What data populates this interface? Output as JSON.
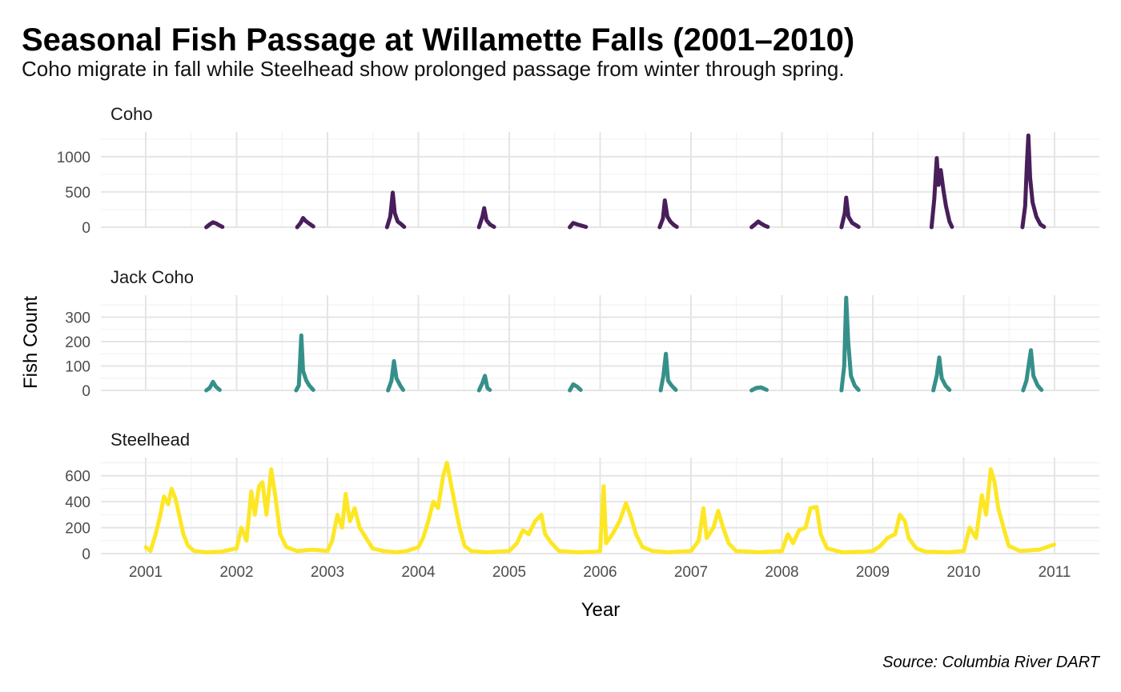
{
  "chart_data": {
    "type": "line",
    "title": "Seasonal Fish Passage at Willamette Falls (2001–2010)",
    "subtitle": "Coho migrate in fall while Steelhead show prolonged passage from winter through spring.",
    "xlabel": "Year",
    "ylabel": "Fish Count",
    "caption": "Source: Columbia River DART",
    "x_ticks": [
      "2001",
      "2002",
      "2003",
      "2004",
      "2005",
      "2006",
      "2007",
      "2008",
      "2009",
      "2010",
      "2011"
    ],
    "grid": true,
    "legend": "none",
    "facets": [
      {
        "label": "Coho",
        "color": "#481F5A",
        "ylim": [
          0,
          1350
        ],
        "y_ticks": [
          0,
          500,
          1000
        ],
        "points": [
          [
            "2001-09-01",
            0
          ],
          [
            "2001-09-15",
            40
          ],
          [
            "2001-09-28",
            70
          ],
          [
            "2001-10-10",
            55
          ],
          [
            "2001-10-22",
            30
          ],
          [
            "2001-11-05",
            5
          ],
          [
            "2002-09-01",
            0
          ],
          [
            "2002-09-15",
            60
          ],
          [
            "2002-09-25",
            130
          ],
          [
            "2002-10-05",
            90
          ],
          [
            "2002-10-20",
            50
          ],
          [
            "2002-11-05",
            10
          ],
          [
            "2003-08-28",
            0
          ],
          [
            "2003-09-10",
            150
          ],
          [
            "2003-09-20",
            490
          ],
          [
            "2003-09-28",
            200
          ],
          [
            "2003-10-10",
            80
          ],
          [
            "2003-10-25",
            40
          ],
          [
            "2003-11-05",
            5
          ],
          [
            "2004-09-01",
            0
          ],
          [
            "2004-09-15",
            150
          ],
          [
            "2004-09-22",
            270
          ],
          [
            "2004-10-01",
            100
          ],
          [
            "2004-10-15",
            40
          ],
          [
            "2004-11-01",
            5
          ],
          [
            "2005-09-01",
            0
          ],
          [
            "2005-09-15",
            60
          ],
          [
            "2005-10-01",
            40
          ],
          [
            "2005-10-20",
            20
          ],
          [
            "2005-11-05",
            5
          ],
          [
            "2006-08-28",
            0
          ],
          [
            "2006-09-10",
            120
          ],
          [
            "2006-09-18",
            380
          ],
          [
            "2006-09-28",
            150
          ],
          [
            "2006-10-10",
            80
          ],
          [
            "2006-10-25",
            30
          ],
          [
            "2006-11-05",
            5
          ],
          [
            "2007-09-01",
            0
          ],
          [
            "2007-09-15",
            40
          ],
          [
            "2007-09-28",
            80
          ],
          [
            "2007-10-10",
            50
          ],
          [
            "2007-10-25",
            20
          ],
          [
            "2007-11-05",
            5
          ],
          [
            "2008-08-28",
            0
          ],
          [
            "2008-09-10",
            200
          ],
          [
            "2008-09-16",
            420
          ],
          [
            "2008-09-25",
            150
          ],
          [
            "2008-10-10",
            60
          ],
          [
            "2008-10-25",
            30
          ],
          [
            "2008-11-05",
            5
          ],
          [
            "2009-08-25",
            0
          ],
          [
            "2009-09-05",
            400
          ],
          [
            "2009-09-15",
            980
          ],
          [
            "2009-09-22",
            600
          ],
          [
            "2009-10-01",
            810
          ],
          [
            "2009-10-12",
            520
          ],
          [
            "2009-10-22",
            300
          ],
          [
            "2009-11-05",
            80
          ],
          [
            "2009-11-15",
            5
          ],
          [
            "2010-08-25",
            0
          ],
          [
            "2010-09-05",
            300
          ],
          [
            "2010-09-12",
            900
          ],
          [
            "2010-09-18",
            1300
          ],
          [
            "2010-09-25",
            700
          ],
          [
            "2010-10-05",
            350
          ],
          [
            "2010-10-20",
            150
          ],
          [
            "2010-11-05",
            40
          ],
          [
            "2010-11-20",
            5
          ]
        ]
      },
      {
        "label": "Jack Coho",
        "color": "#36908A",
        "ylim": [
          0,
          390
        ],
        "y_ticks": [
          0,
          100,
          200,
          300
        ],
        "points": [
          [
            "2001-09-01",
            0
          ],
          [
            "2001-09-15",
            10
          ],
          [
            "2001-09-28",
            35
          ],
          [
            "2001-10-10",
            15
          ],
          [
            "2001-10-25",
            2
          ],
          [
            "2002-08-28",
            0
          ],
          [
            "2002-09-08",
            20
          ],
          [
            "2002-09-18",
            225
          ],
          [
            "2002-09-25",
            80
          ],
          [
            "2002-10-08",
            40
          ],
          [
            "2002-10-20",
            20
          ],
          [
            "2002-11-05",
            2
          ],
          [
            "2003-09-01",
            0
          ],
          [
            "2003-09-15",
            40
          ],
          [
            "2003-09-25",
            120
          ],
          [
            "2003-10-05",
            50
          ],
          [
            "2003-10-20",
            20
          ],
          [
            "2003-11-01",
            2
          ],
          [
            "2004-09-01",
            0
          ],
          [
            "2004-09-15",
            30
          ],
          [
            "2004-09-25",
            60
          ],
          [
            "2004-10-05",
            10
          ],
          [
            "2004-10-15",
            2
          ],
          [
            "2005-09-01",
            0
          ],
          [
            "2005-09-15",
            25
          ],
          [
            "2005-10-01",
            15
          ],
          [
            "2005-10-15",
            2
          ],
          [
            "2006-09-01",
            0
          ],
          [
            "2006-09-12",
            60
          ],
          [
            "2006-09-22",
            150
          ],
          [
            "2006-10-01",
            40
          ],
          [
            "2006-10-15",
            20
          ],
          [
            "2006-11-01",
            2
          ],
          [
            "2007-09-01",
            0
          ],
          [
            "2007-09-20",
            10
          ],
          [
            "2007-10-10",
            12
          ],
          [
            "2007-11-01",
            2
          ],
          [
            "2008-08-28",
            0
          ],
          [
            "2008-09-08",
            100
          ],
          [
            "2008-09-16",
            380
          ],
          [
            "2008-09-24",
            200
          ],
          [
            "2008-10-05",
            60
          ],
          [
            "2008-10-20",
            20
          ],
          [
            "2008-11-05",
            2
          ],
          [
            "2009-09-01",
            0
          ],
          [
            "2009-09-15",
            60
          ],
          [
            "2009-09-25",
            135
          ],
          [
            "2009-10-05",
            50
          ],
          [
            "2009-10-20",
            20
          ],
          [
            "2009-11-05",
            2
          ],
          [
            "2010-08-28",
            0
          ],
          [
            "2010-09-10",
            40
          ],
          [
            "2010-09-20",
            110
          ],
          [
            "2010-09-28",
            165
          ],
          [
            "2010-10-08",
            60
          ],
          [
            "2010-10-25",
            20
          ],
          [
            "2010-11-10",
            2
          ]
        ]
      },
      {
        "label": "Steelhead",
        "color": "#FDE725",
        "ylim": [
          0,
          740
        ],
        "y_ticks": [
          0,
          200,
          400,
          600
        ],
        "points": [
          [
            "2001-01-01",
            50
          ],
          [
            "2001-01-20",
            20
          ],
          [
            "2001-02-10",
            150
          ],
          [
            "2001-03-01",
            300
          ],
          [
            "2001-03-15",
            440
          ],
          [
            "2001-04-01",
            380
          ],
          [
            "2001-04-15",
            500
          ],
          [
            "2001-05-01",
            420
          ],
          [
            "2001-05-15",
            300
          ],
          [
            "2001-06-01",
            150
          ],
          [
            "2001-06-20",
            60
          ],
          [
            "2001-07-15",
            20
          ],
          [
            "2001-09-01",
            10
          ],
          [
            "2001-11-01",
            15
          ],
          [
            "2002-01-01",
            40
          ],
          [
            "2002-01-20",
            200
          ],
          [
            "2002-02-10",
            100
          ],
          [
            "2002-03-01",
            480
          ],
          [
            "2002-03-15",
            300
          ],
          [
            "2002-04-01",
            520
          ],
          [
            "2002-04-15",
            550
          ],
          [
            "2002-05-01",
            300
          ],
          [
            "2002-05-20",
            650
          ],
          [
            "2002-06-05",
            450
          ],
          [
            "2002-06-25",
            150
          ],
          [
            "2002-07-20",
            50
          ],
          [
            "2002-09-01",
            20
          ],
          [
            "2002-11-01",
            30
          ],
          [
            "2003-01-01",
            20
          ],
          [
            "2003-01-20",
            100
          ],
          [
            "2003-02-10",
            300
          ],
          [
            "2003-03-01",
            200
          ],
          [
            "2003-03-15",
            460
          ],
          [
            "2003-04-01",
            250
          ],
          [
            "2003-04-20",
            350
          ],
          [
            "2003-05-10",
            200
          ],
          [
            "2003-06-05",
            120
          ],
          [
            "2003-07-01",
            40
          ],
          [
            "2003-08-15",
            20
          ],
          [
            "2003-10-01",
            10
          ],
          [
            "2003-11-15",
            20
          ],
          [
            "2004-01-01",
            50
          ],
          [
            "2004-01-20",
            120
          ],
          [
            "2004-02-10",
            250
          ],
          [
            "2004-03-01",
            400
          ],
          [
            "2004-03-20",
            350
          ],
          [
            "2004-04-10",
            600
          ],
          [
            "2004-04-25",
            700
          ],
          [
            "2004-05-10",
            550
          ],
          [
            "2004-05-25",
            400
          ],
          [
            "2004-06-15",
            200
          ],
          [
            "2004-07-05",
            60
          ],
          [
            "2004-08-01",
            20
          ],
          [
            "2004-10-01",
            10
          ],
          [
            "2005-01-01",
            20
          ],
          [
            "2005-02-01",
            80
          ],
          [
            "2005-02-25",
            180
          ],
          [
            "2005-03-20",
            150
          ],
          [
            "2005-04-15",
            250
          ],
          [
            "2005-05-10",
            300
          ],
          [
            "2005-05-25",
            150
          ],
          [
            "2005-06-20",
            80
          ],
          [
            "2005-07-20",
            20
          ],
          [
            "2005-10-01",
            10
          ],
          [
            "2005-12-15",
            15
          ],
          [
            "2006-01-01",
            20
          ],
          [
            "2006-01-15",
            520
          ],
          [
            "2006-01-25",
            80
          ],
          [
            "2006-02-20",
            150
          ],
          [
            "2006-03-20",
            250
          ],
          [
            "2006-04-15",
            390
          ],
          [
            "2006-05-05",
            280
          ],
          [
            "2006-05-25",
            150
          ],
          [
            "2006-06-20",
            50
          ],
          [
            "2006-08-01",
            20
          ],
          [
            "2006-10-01",
            10
          ],
          [
            "2007-01-01",
            20
          ],
          [
            "2007-02-01",
            100
          ],
          [
            "2007-02-20",
            350
          ],
          [
            "2007-03-05",
            120
          ],
          [
            "2007-04-01",
            200
          ],
          [
            "2007-04-20",
            330
          ],
          [
            "2007-05-10",
            200
          ],
          [
            "2007-06-01",
            80
          ],
          [
            "2007-07-01",
            20
          ],
          [
            "2007-10-01",
            10
          ],
          [
            "2008-01-01",
            20
          ],
          [
            "2008-01-25",
            150
          ],
          [
            "2008-02-15",
            80
          ],
          [
            "2008-03-10",
            180
          ],
          [
            "2008-04-05",
            200
          ],
          [
            "2008-04-25",
            350
          ],
          [
            "2008-05-20",
            360
          ],
          [
            "2008-06-05",
            150
          ],
          [
            "2008-07-01",
            40
          ],
          [
            "2008-09-01",
            10
          ],
          [
            "2008-12-01",
            15
          ],
          [
            "2009-01-01",
            20
          ],
          [
            "2009-02-01",
            60
          ],
          [
            "2009-03-01",
            120
          ],
          [
            "2009-04-01",
            150
          ],
          [
            "2009-04-20",
            300
          ],
          [
            "2009-05-10",
            250
          ],
          [
            "2009-05-25",
            120
          ],
          [
            "2009-06-25",
            40
          ],
          [
            "2009-08-01",
            15
          ],
          [
            "2009-11-01",
            10
          ],
          [
            "2010-01-01",
            20
          ],
          [
            "2010-01-25",
            200
          ],
          [
            "2010-02-20",
            120
          ],
          [
            "2010-03-15",
            450
          ],
          [
            "2010-04-01",
            300
          ],
          [
            "2010-04-20",
            650
          ],
          [
            "2010-05-05",
            550
          ],
          [
            "2010-05-20",
            350
          ],
          [
            "2010-06-10",
            200
          ],
          [
            "2010-07-01",
            60
          ],
          [
            "2010-08-15",
            20
          ],
          [
            "2010-11-01",
            30
          ],
          [
            "2010-12-31",
            70
          ]
        ]
      }
    ]
  }
}
